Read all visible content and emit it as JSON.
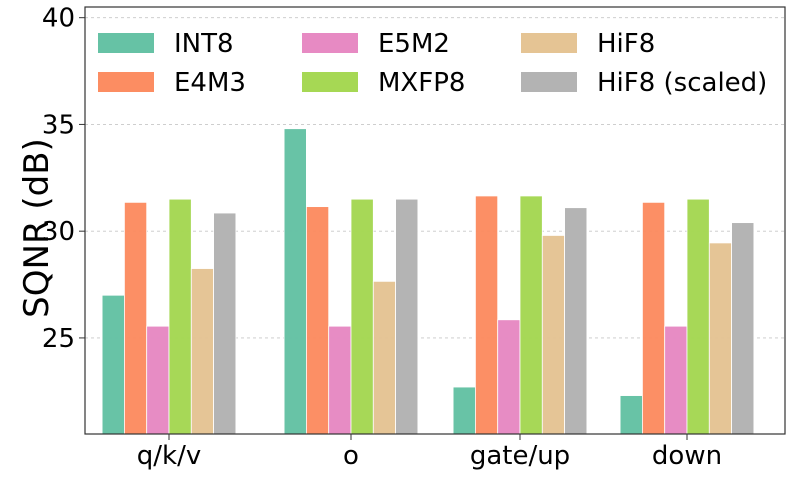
{
  "chart_data": {
    "type": "bar",
    "title": "",
    "xlabel": "",
    "ylabel": "SQNR (dB)",
    "ylim": [
      20.5,
      40.5
    ],
    "yticks": [
      25,
      30,
      35,
      40
    ],
    "grid": true,
    "legend_position": "top",
    "categories": [
      "q/k/v",
      "o",
      "gate/up",
      "down"
    ],
    "series": [
      {
        "name": "INT8",
        "color": "#66c2a5",
        "values": [
          27.0,
          34.8,
          22.7,
          22.3
        ]
      },
      {
        "name": "E4M3",
        "color": "#fc8d62",
        "values": [
          31.35,
          31.15,
          31.65,
          31.35
        ]
      },
      {
        "name": "E5M2",
        "color": "#e78ac3",
        "values": [
          25.55,
          25.55,
          25.85,
          25.55
        ]
      },
      {
        "name": "MXFP8",
        "color": "#a6d854",
        "values": [
          31.5,
          31.5,
          31.65,
          31.5
        ]
      },
      {
        "name": "HiF8",
        "color": "#e5c494",
        "values": [
          28.25,
          27.65,
          29.8,
          29.45
        ]
      },
      {
        "name": "HiF8 (scaled)",
        "color": "#b3b3b3",
        "values": [
          30.85,
          31.5,
          31.1,
          30.4
        ]
      }
    ]
  }
}
